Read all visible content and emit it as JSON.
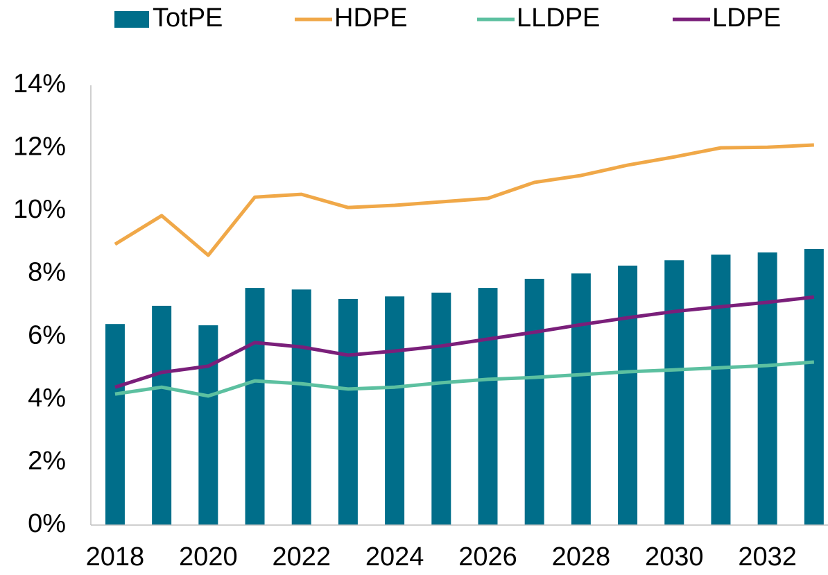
{
  "chart_data": {
    "type": "combo",
    "x": [
      2018,
      2019,
      2020,
      2021,
      2022,
      2023,
      2024,
      2025,
      2026,
      2027,
      2028,
      2029,
      2030,
      2031,
      2032,
      2033
    ],
    "xlim": [
      2017.48,
      2033.3
    ],
    "xticks": [
      2018,
      2020,
      2022,
      2024,
      2026,
      2028,
      2030,
      2032
    ],
    "ylim": [
      0,
      14
    ],
    "yticks": [
      {
        "value": 0,
        "label": "0%"
      },
      {
        "value": 2,
        "label": "2%"
      },
      {
        "value": 4,
        "label": "4%"
      },
      {
        "value": 6,
        "label": "6%"
      },
      {
        "value": 8,
        "label": "8%"
      },
      {
        "value": 10,
        "label": "10%"
      },
      {
        "value": 12,
        "label": "12%"
      },
      {
        "value": 14,
        "label": "14%"
      }
    ],
    "legend": "top",
    "series": [
      {
        "name": "TotPE",
        "type": "bar",
        "color": "#006e8a",
        "values": [
          6.4,
          6.98,
          6.36,
          7.55,
          7.5,
          7.2,
          7.28,
          7.4,
          7.55,
          7.84,
          8.01,
          8.26,
          8.43,
          8.61,
          8.68,
          8.79
        ]
      },
      {
        "name": "HDPE",
        "type": "line",
        "color": "#f0a848",
        "values": [
          8.94,
          9.85,
          8.59,
          10.44,
          10.53,
          10.11,
          10.18,
          10.29,
          10.4,
          10.91,
          11.13,
          11.46,
          11.72,
          12.01,
          12.03,
          12.1
        ]
      },
      {
        "name": "LLDPE",
        "type": "line",
        "color": "#5cc0a0",
        "values": [
          4.17,
          4.39,
          4.11,
          4.59,
          4.5,
          4.33,
          4.39,
          4.53,
          4.64,
          4.7,
          4.79,
          4.88,
          4.94,
          5.01,
          5.08,
          5.19
        ]
      },
      {
        "name": "LDPE",
        "type": "line",
        "color": "#7a1f7a",
        "values": [
          4.39,
          4.86,
          5.06,
          5.81,
          5.67,
          5.41,
          5.54,
          5.7,
          5.92,
          6.14,
          6.38,
          6.6,
          6.8,
          6.95,
          7.09,
          7.26
        ]
      }
    ]
  }
}
